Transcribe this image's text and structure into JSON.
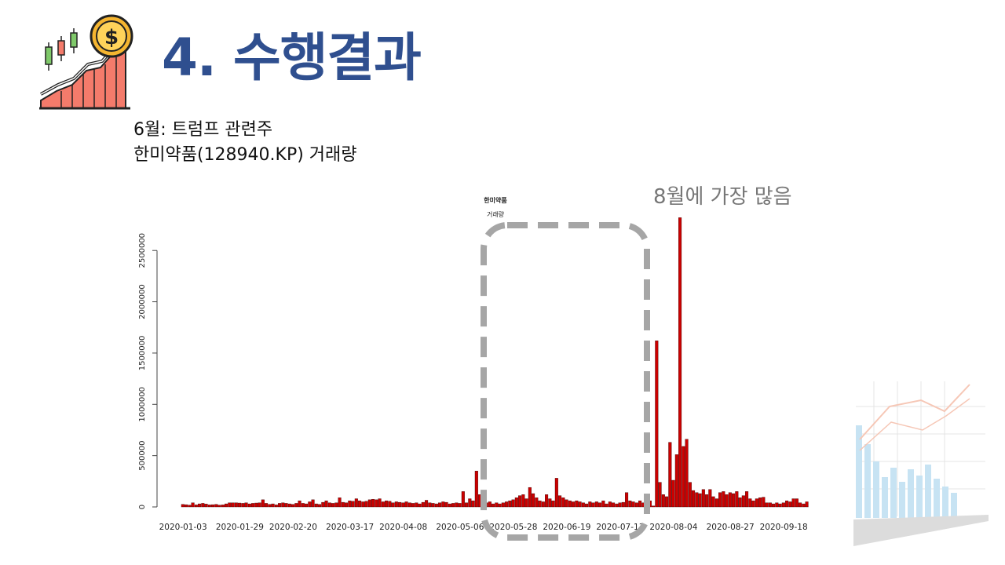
{
  "slide": {
    "title": "4. 수행결과",
    "subtitle_line1": "6월: 트럼프 관련주",
    "subtitle_line2": "한미약품(128940.KP) 거래량",
    "callout": "8월에 가장 많음"
  },
  "icons": {
    "logo": "candlestick-growth-dollar-icon",
    "decoration": "faded-bar-line-chart-icon"
  },
  "chart_data": {
    "type": "bar",
    "title": "한미약품",
    "subtitle": "거래량",
    "bar_color": "#cc0000",
    "ylim": [
      0,
      2800000
    ],
    "yticks": [
      0,
      500000,
      1000000,
      1500000,
      2000000,
      2500000
    ],
    "ytick_labels": [
      "0",
      "500000",
      "1000000",
      "1500000",
      "2000000",
      "2500000"
    ],
    "xtick_labels": [
      "2020-01-03",
      "2020-01-29",
      "2020-02-20",
      "2020-03-17",
      "2020-04-08",
      "2020-05-06",
      "2020-05-28",
      "2020-06-19",
      "2020-07-13",
      "2020-08-04",
      "2020-08-27",
      "2020-09-18"
    ],
    "xtick_index": [
      0,
      17,
      33,
      50,
      66,
      83,
      99,
      115,
      131,
      147,
      164,
      180
    ],
    "values": [
      25000,
      22000,
      18000,
      40000,
      20000,
      30000,
      35000,
      28000,
      20000,
      22000,
      25000,
      18000,
      20000,
      30000,
      40000,
      40000,
      40000,
      38000,
      35000,
      40000,
      30000,
      35000,
      38000,
      40000,
      70000,
      35000,
      25000,
      30000,
      20000,
      35000,
      40000,
      35000,
      30000,
      25000,
      35000,
      60000,
      35000,
      30000,
      50000,
      70000,
      30000,
      25000,
      45000,
      60000,
      40000,
      35000,
      40000,
      90000,
      45000,
      40000,
      60000,
      55000,
      80000,
      60000,
      50000,
      55000,
      70000,
      75000,
      70000,
      80000,
      50000,
      60000,
      55000,
      40000,
      50000,
      45000,
      40000,
      50000,
      40000,
      35000,
      40000,
      30000,
      45000,
      65000,
      40000,
      35000,
      30000,
      40000,
      50000,
      45000,
      30000,
      35000,
      40000,
      35000,
      150000,
      40000,
      80000,
      60000,
      350000,
      120000,
      80000,
      40000,
      50000,
      30000,
      40000,
      30000,
      40000,
      50000,
      60000,
      70000,
      90000,
      110000,
      120000,
      80000,
      190000,
      130000,
      90000,
      60000,
      50000,
      120000,
      80000,
      60000,
      280000,
      110000,
      90000,
      70000,
      60000,
      50000,
      60000,
      50000,
      40000,
      30000,
      50000,
      40000,
      50000,
      40000,
      60000,
      30000,
      50000,
      40000,
      30000,
      40000,
      45000,
      140000,
      60000,
      50000,
      40000,
      60000,
      40000,
      90000,
      60000,
      10000,
      1620000,
      240000,
      120000,
      100000,
      630000,
      260000,
      510000,
      2820000,
      590000,
      660000,
      240000,
      160000,
      140000,
      130000,
      170000,
      120000,
      170000,
      100000,
      80000,
      140000,
      150000,
      120000,
      140000,
      130000,
      150000,
      90000,
      110000,
      150000,
      80000,
      60000,
      80000,
      90000,
      95000,
      40000,
      40000,
      30000,
      40000,
      30000,
      40000,
      60000,
      50000,
      80000,
      80000,
      40000,
      30000,
      50000
    ]
  }
}
